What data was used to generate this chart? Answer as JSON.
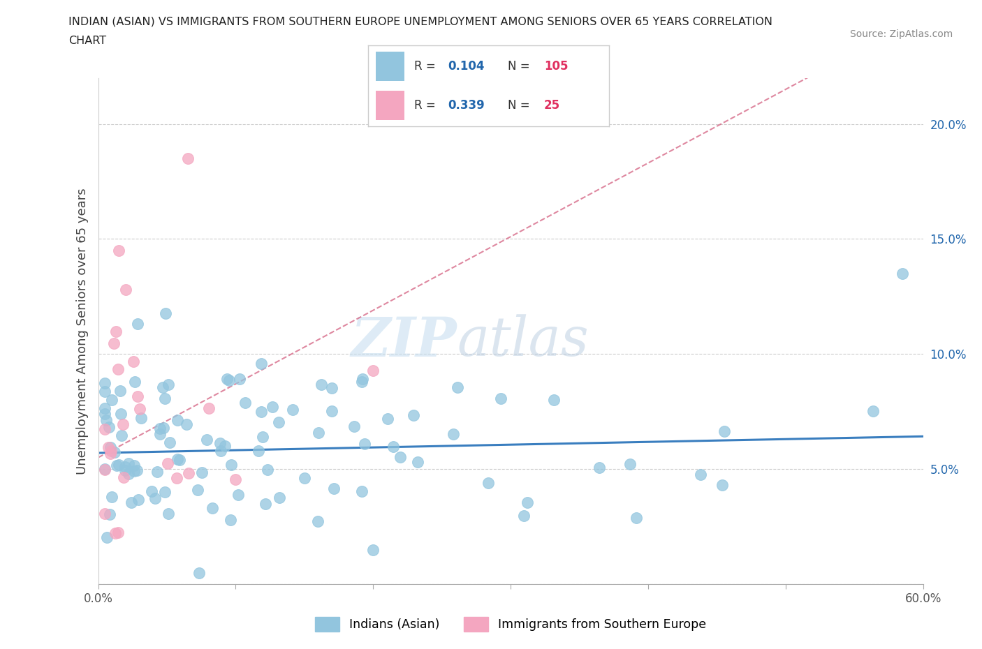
{
  "title_line1": "INDIAN (ASIAN) VS IMMIGRANTS FROM SOUTHERN EUROPE UNEMPLOYMENT AMONG SENIORS OVER 65 YEARS CORRELATION",
  "title_line2": "CHART",
  "source": "Source: ZipAtlas.com",
  "ylabel": "Unemployment Among Seniors over 65 years",
  "xlim": [
    0.0,
    0.6
  ],
  "ylim": [
    0.0,
    0.22
  ],
  "blue_color": "#92c5de",
  "pink_color": "#f4a6c0",
  "blue_trend_color": "#3a7ebf",
  "pink_trend_color": "#d46080",
  "legend_R1": "0.104",
  "legend_N1": "105",
  "legend_R2": "0.339",
  "legend_N2": "25",
  "legend_label1": "Indians (Asian)",
  "legend_label2": "Immigrants from Southern Europe",
  "blue_trend_slope": 0.012,
  "blue_trend_intercept": 0.057,
  "pink_trend_slope": 0.32,
  "pink_trend_intercept": 0.055,
  "R_color": "#2166ac",
  "N_color": "#e03060",
  "label_color": "#333333",
  "title_fontsize": 11.5,
  "source_fontsize": 10,
  "tick_fontsize": 12,
  "ylabel_fontsize": 13
}
